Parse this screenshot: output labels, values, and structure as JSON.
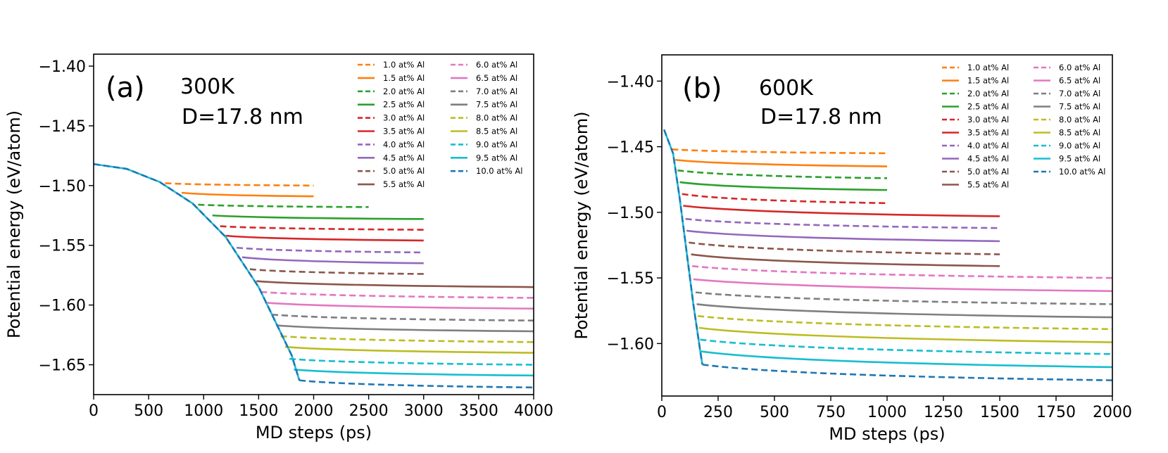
{
  "series_styles": [
    {
      "name": "1.0 at% Al",
      "color": "#ff7f0e",
      "dash": true
    },
    {
      "name": "1.5 at% Al",
      "color": "#ff7f0e",
      "dash": false
    },
    {
      "name": "2.0 at% Al",
      "color": "#2ca02c",
      "dash": true
    },
    {
      "name": "2.5 at% Al",
      "color": "#2ca02c",
      "dash": false
    },
    {
      "name": "3.0 at% Al",
      "color": "#d62728",
      "dash": true
    },
    {
      "name": "3.5 at% Al",
      "color": "#d62728",
      "dash": false
    },
    {
      "name": "4.0 at% Al",
      "color": "#9467bd",
      "dash": true
    },
    {
      "name": "4.5 at% Al",
      "color": "#9467bd",
      "dash": false
    },
    {
      "name": "5.0 at% Al",
      "color": "#8c564b",
      "dash": true
    },
    {
      "name": "5.5 at% Al",
      "color": "#8c564b",
      "dash": false
    },
    {
      "name": "6.0 at% Al",
      "color": "#e377c2",
      "dash": true
    },
    {
      "name": "6.5 at% Al",
      "color": "#e377c2",
      "dash": false
    },
    {
      "name": "7.0 at% Al",
      "color": "#7f7f7f",
      "dash": true
    },
    {
      "name": "7.5 at% Al",
      "color": "#7f7f7f",
      "dash": false
    },
    {
      "name": "8.0 at% Al",
      "color": "#bcbd22",
      "dash": true
    },
    {
      "name": "8.5 at% Al",
      "color": "#bcbd22",
      "dash": false
    },
    {
      "name": "9.0 at% Al",
      "color": "#17becf",
      "dash": true
    },
    {
      "name": "9.5 at% Al",
      "color": "#17becf",
      "dash": false
    },
    {
      "name": "10.0 at% Al",
      "color": "#1f77b4",
      "dash": true
    }
  ],
  "chart_data": [
    {
      "type": "line",
      "panel_label": "(a)",
      "annotation_temp": "300K",
      "annotation_size": "D=17.8 nm",
      "xlabel": "MD steps (ps)",
      "ylabel": "Potential energy (eV/atom)",
      "xlim": [
        0,
        4000
      ],
      "ylim": [
        -1.675,
        -1.39
      ],
      "xticks": [
        0,
        500,
        1000,
        1500,
        2000,
        2500,
        3000,
        3500,
        4000
      ],
      "yticks": [
        -1.65,
        -1.6,
        -1.55,
        -1.5,
        -1.45,
        -1.4
      ],
      "ytick_labels": [
        "−1.65",
        "−1.60",
        "−1.55",
        "−1.50",
        "−1.45",
        "−1.40"
      ],
      "legend_position": "top-right",
      "trunk": {
        "x": [
          0,
          300,
          600,
          900,
          1200,
          1500,
          1800,
          1870
        ],
        "y": [
          -1.482,
          -1.486,
          -1.497,
          -1.515,
          -1.543,
          -1.585,
          -1.642,
          -1.663
        ]
      },
      "series": [
        {
          "start": [
            650,
            -1.498
          ],
          "end": [
            2000,
            -1.5
          ]
        },
        {
          "start": [
            800,
            -1.506
          ],
          "end": [
            2000,
            -1.509
          ]
        },
        {
          "start": [
            950,
            -1.516
          ],
          "end": [
            2500,
            -1.518
          ]
        },
        {
          "start": [
            1080,
            -1.525
          ],
          "end": [
            3000,
            -1.528
          ]
        },
        {
          "start": [
            1150,
            -1.534
          ],
          "end": [
            3000,
            -1.537
          ]
        },
        {
          "start": [
            1200,
            -1.542
          ],
          "end": [
            3000,
            -1.546
          ]
        },
        {
          "start": [
            1300,
            -1.552
          ],
          "end": [
            3000,
            -1.556
          ]
        },
        {
          "start": [
            1350,
            -1.56
          ],
          "end": [
            3000,
            -1.565
          ]
        },
        {
          "start": [
            1420,
            -1.57
          ],
          "end": [
            3000,
            -1.574
          ]
        },
        {
          "start": [
            1480,
            -1.58
          ],
          "end": [
            4000,
            -1.585
          ]
        },
        {
          "start": [
            1520,
            -1.589
          ],
          "end": [
            4000,
            -1.594
          ]
        },
        {
          "start": [
            1560,
            -1.598
          ],
          "end": [
            4000,
            -1.603
          ]
        },
        {
          "start": [
            1620,
            -1.608
          ],
          "end": [
            4000,
            -1.613
          ]
        },
        {
          "start": [
            1660,
            -1.617
          ],
          "end": [
            4000,
            -1.622
          ]
        },
        {
          "start": [
            1700,
            -1.626
          ],
          "end": [
            4000,
            -1.631
          ]
        },
        {
          "start": [
            1740,
            -1.635
          ],
          "end": [
            4000,
            -1.64
          ]
        },
        {
          "start": [
            1780,
            -1.645
          ],
          "end": [
            4000,
            -1.65
          ]
        },
        {
          "start": [
            1820,
            -1.654
          ],
          "end": [
            4000,
            -1.659
          ]
        },
        {
          "start": [
            1870,
            -1.663
          ],
          "end": [
            4000,
            -1.669
          ]
        }
      ]
    },
    {
      "type": "line",
      "panel_label": "(b)",
      "annotation_temp": "600K",
      "annotation_size": "D=17.8 nm",
      "xlabel": "MD steps (ps)",
      "ylabel": "Potential energy (eV/atom)",
      "xlim": [
        0,
        2000
      ],
      "ylim": [
        -1.64,
        -1.38
      ],
      "xticks": [
        0,
        250,
        500,
        750,
        1000,
        1250,
        1500,
        1750,
        2000
      ],
      "yticks": [
        -1.6,
        -1.55,
        -1.5,
        -1.45,
        -1.4
      ],
      "ytick_labels": [
        "−1.60",
        "−1.55",
        "−1.50",
        "−1.45",
        "−1.40"
      ],
      "legend_position": "top-right",
      "trunk": {
        "x": [
          10,
          50,
          80,
          110,
          140,
          170,
          180
        ],
        "y": [
          -1.437,
          -1.455,
          -1.49,
          -1.53,
          -1.57,
          -1.605,
          -1.616
        ]
      },
      "series": [
        {
          "start": [
            45,
            -1.452
          ],
          "end": [
            1000,
            -1.455
          ]
        },
        {
          "start": [
            60,
            -1.46
          ],
          "end": [
            1000,
            -1.465
          ]
        },
        {
          "start": [
            70,
            -1.468
          ],
          "end": [
            1000,
            -1.474
          ]
        },
        {
          "start": [
            80,
            -1.477
          ],
          "end": [
            1000,
            -1.483
          ]
        },
        {
          "start": [
            90,
            -1.486
          ],
          "end": [
            1000,
            -1.493
          ]
        },
        {
          "start": [
            95,
            -1.495
          ],
          "end": [
            1500,
            -1.503
          ]
        },
        {
          "start": [
            105,
            -1.505
          ],
          "end": [
            1500,
            -1.512
          ]
        },
        {
          "start": [
            110,
            -1.514
          ],
          "end": [
            1500,
            -1.522
          ]
        },
        {
          "start": [
            120,
            -1.523
          ],
          "end": [
            1500,
            -1.532
          ]
        },
        {
          "start": [
            130,
            -1.532
          ],
          "end": [
            1500,
            -1.541
          ]
        },
        {
          "start": [
            135,
            -1.541
          ],
          "end": [
            2000,
            -1.55
          ]
        },
        {
          "start": [
            140,
            -1.551
          ],
          "end": [
            2000,
            -1.56
          ]
        },
        {
          "start": [
            150,
            -1.561
          ],
          "end": [
            2000,
            -1.57
          ]
        },
        {
          "start": [
            155,
            -1.57
          ],
          "end": [
            2000,
            -1.58
          ]
        },
        {
          "start": [
            160,
            -1.579
          ],
          "end": [
            2000,
            -1.589
          ]
        },
        {
          "start": [
            165,
            -1.588
          ],
          "end": [
            2000,
            -1.599
          ]
        },
        {
          "start": [
            170,
            -1.597
          ],
          "end": [
            2000,
            -1.608
          ]
        },
        {
          "start": [
            175,
            -1.606
          ],
          "end": [
            2000,
            -1.618
          ]
        },
        {
          "start": [
            180,
            -1.616
          ],
          "end": [
            2000,
            -1.628
          ]
        }
      ]
    }
  ]
}
